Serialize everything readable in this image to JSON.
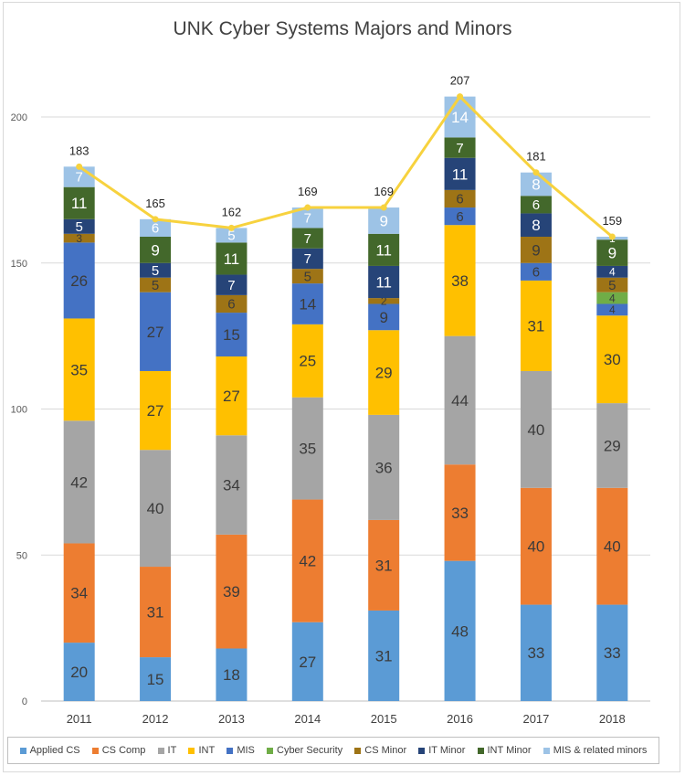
{
  "chart_data": {
    "type": "bar",
    "stacked": true,
    "title": "UNK Cyber Systems Majors and Minors",
    "xlabel": "",
    "ylabel": "",
    "ylim": [
      0,
      200
    ],
    "yticks": [
      0,
      50,
      100,
      150,
      200
    ],
    "grid": true,
    "legend_position": "bottom",
    "categories": [
      "2011",
      "2012",
      "2013",
      "2014",
      "2015",
      "2016",
      "2017",
      "2018"
    ],
    "series": [
      {
        "name": "Applied CS",
        "color": "#5B9BD5",
        "label_color": "#3b3b3b",
        "values": [
          20,
          15,
          18,
          27,
          31,
          48,
          33,
          33
        ]
      },
      {
        "name": "CS Comp",
        "color": "#ED7D31",
        "label_color": "#3b3b3b",
        "values": [
          34,
          31,
          39,
          42,
          31,
          33,
          40,
          40
        ]
      },
      {
        "name": "IT",
        "color": "#A5A5A5",
        "label_color": "#3b3b3b",
        "values": [
          42,
          40,
          34,
          35,
          36,
          44,
          40,
          29
        ]
      },
      {
        "name": "INT",
        "color": "#FFC000",
        "label_color": "#3b3b3b",
        "values": [
          35,
          27,
          27,
          25,
          29,
          38,
          31,
          30
        ]
      },
      {
        "name": "MIS",
        "color": "#4472C4",
        "label_color": "#3b3b3b",
        "values": [
          26,
          27,
          15,
          14,
          9,
          6,
          6,
          4
        ]
      },
      {
        "name": "Cyber Security",
        "color": "#70AD47",
        "label_color": "#3b3b3b",
        "values": [
          0,
          0,
          0,
          0,
          0,
          0,
          0,
          4
        ]
      },
      {
        "name": "CS Minor",
        "color": "#9E7416",
        "label_color": "#3b3b3b",
        "values": [
          3,
          5,
          6,
          5,
          2,
          6,
          9,
          5
        ]
      },
      {
        "name": "IT Minor",
        "color": "#264478",
        "label_color": "#ffffff",
        "values": [
          5,
          5,
          7,
          7,
          11,
          11,
          8,
          4
        ]
      },
      {
        "name": "INT Minor",
        "color": "#43682B",
        "label_color": "#ffffff",
        "values": [
          11,
          9,
          11,
          7,
          11,
          7,
          6,
          9
        ]
      },
      {
        "name": "MIS & related minors",
        "color": "#9DC3E6",
        "label_color": "#ffffff",
        "values": [
          7,
          6,
          5,
          7,
          9,
          14,
          8,
          1
        ]
      }
    ],
    "totals": {
      "type": "line",
      "color": "#F7D23E",
      "values": [
        183,
        165,
        162,
        169,
        169,
        207,
        181,
        159
      ]
    }
  }
}
